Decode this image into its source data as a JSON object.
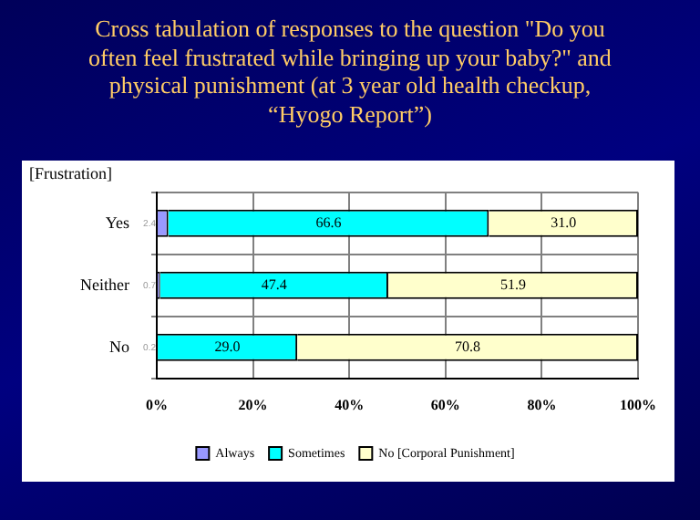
{
  "chart_data": {
    "type": "bar",
    "orientation": "horizontal",
    "stacked": true,
    "title": "Cross tabulation of responses to the question \"Do you often feel frustrated while bringing up your baby?\" and physical punishment (at 3 year old health checkup, “Hyogo Report”)",
    "ylabel": "[Frustration]",
    "categories": [
      "Yes",
      "Neither",
      "No"
    ],
    "series": [
      {
        "name": "Always",
        "color": "#9999ff",
        "values": [
          2.4,
          0.7,
          0.2
        ],
        "value_labels": [
          "2.4",
          "0.7",
          "0.2"
        ]
      },
      {
        "name": "Sometimes",
        "color": "#00ffff",
        "values": [
          66.6,
          47.4,
          29.0
        ],
        "value_labels": [
          "66.6",
          "47.4",
          "29.0"
        ]
      },
      {
        "name": "No [Corporal Punishment]",
        "color": "#ffffcc",
        "values": [
          31.0,
          51.9,
          70.8
        ],
        "value_labels": [
          "31.0",
          "51.9",
          "70.8"
        ]
      }
    ],
    "xlim": [
      0,
      100
    ],
    "xticks": [
      {
        "value": 0,
        "label": "0%"
      },
      {
        "value": 20,
        "label": "20%"
      },
      {
        "value": 40,
        "label": "40%"
      },
      {
        "value": 60,
        "label": "60%"
      },
      {
        "value": 80,
        "label": "80%"
      },
      {
        "value": 100,
        "label": "100%"
      }
    ],
    "grid": true,
    "legend": "bottom"
  }
}
